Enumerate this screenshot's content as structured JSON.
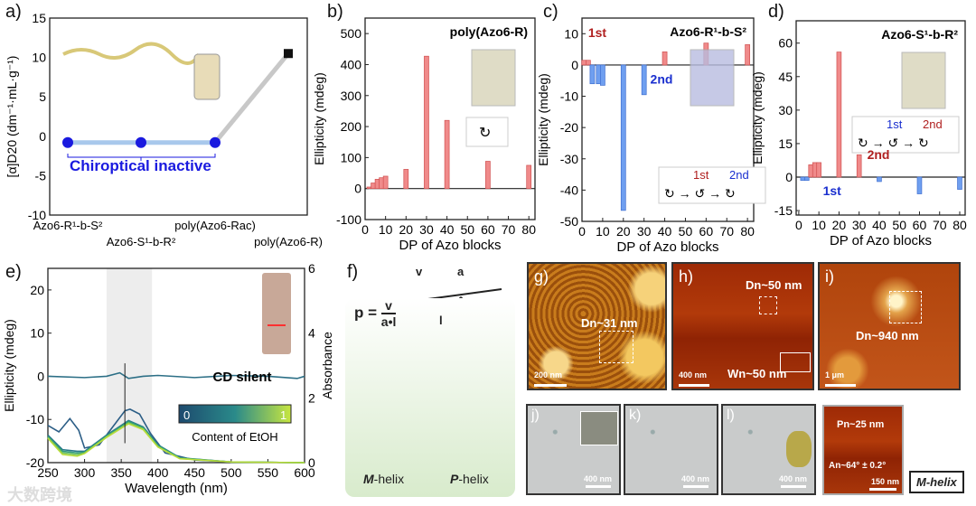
{
  "panel_labels": [
    "a)",
    "b)",
    "c)",
    "d)",
    "e)",
    "f)",
    "g)",
    "h)",
    "i)",
    "j)",
    "k)",
    "l)"
  ],
  "colors": {
    "positive_bar": "#f08a8a",
    "negative_bar": "#6f9ff0",
    "line_point": "#1a1adf",
    "azo_label": "#1a1adf",
    "first": "#b02020",
    "second": "#1a2fcf"
  },
  "chart_data": [
    {
      "id": "a",
      "type": "line",
      "ylabel": "[α]D20 (dm⁻¹·mL·g⁻¹)",
      "ylim": [
        -10,
        15
      ],
      "yticks": [
        -10,
        -5,
        0,
        5,
        10,
        15
      ],
      "categories": [
        "Azo6-R¹-b-S²",
        "Azo6-S¹-b-R²",
        "poly(Azo6-Rac)",
        "poly(Azo6-R)"
      ],
      "values": [
        -0.8,
        -0.8,
        -0.8,
        10.5
      ],
      "annotation": "Chiroptical inactive"
    },
    {
      "id": "b",
      "type": "bar",
      "title": "poly(Azo6-R)",
      "xlabel": "DP of Azo blocks",
      "ylabel": "Ellipticity (mdeg)",
      "xlim": [
        0,
        83
      ],
      "ylim": [
        -100,
        550
      ],
      "xticks": [
        0,
        10,
        20,
        30,
        40,
        50,
        60,
        70,
        80
      ],
      "yticks": [
        -100,
        0,
        100,
        200,
        300,
        400,
        500
      ],
      "x": [
        2,
        4,
        6,
        8,
        10,
        20,
        30,
        40,
        60,
        80
      ],
      "values": [
        5,
        18,
        30,
        35,
        40,
        62,
        427,
        220,
        88,
        75
      ]
    },
    {
      "id": "c",
      "type": "bar",
      "title": "Azo6-R¹-b-S²",
      "xlabel": "DP of Azo blocks",
      "ylabel": "Ellipticity (mdeg)",
      "xlim": [
        0,
        83
      ],
      "ylim": [
        -50,
        15
      ],
      "xticks": [
        0,
        10,
        20,
        30,
        40,
        50,
        60,
        70,
        80
      ],
      "yticks": [
        -50,
        -40,
        -30,
        -20,
        -10,
        0,
        10
      ],
      "x": [
        1,
        3,
        5,
        8,
        10,
        20,
        30,
        40,
        60,
        80
      ],
      "values": [
        1.5,
        1.5,
        -6,
        -6,
        -6.5,
        -46.5,
        -9.5,
        4.2,
        7,
        6.5
      ],
      "annotations": [
        "1st",
        "2nd"
      ],
      "scheme": [
        "1st",
        "2nd"
      ]
    },
    {
      "id": "d",
      "type": "bar",
      "title": "Azo6-S¹-b-R²",
      "xlabel": "DP of Azo blocks",
      "ylabel": "Ellipticity (mdeg)",
      "xlim": [
        -1.3,
        82.7
      ],
      "ylim": [
        -17,
        70
      ],
      "xticks": [
        0,
        10,
        20,
        30,
        40,
        50,
        60,
        70,
        80
      ],
      "yticks": [
        -15,
        0,
        15,
        30,
        45,
        60
      ],
      "x": [
        2,
        4,
        6,
        8,
        10,
        20,
        30,
        40,
        60,
        80
      ],
      "values": [
        -1.5,
        -1.5,
        5.5,
        6.5,
        6.5,
        56,
        10,
        -2,
        -7.5,
        -5.5
      ],
      "annotations": [
        "1st",
        "2nd"
      ],
      "scheme": [
        "1st",
        "2nd"
      ]
    },
    {
      "id": "e",
      "type": "line",
      "xlabel": "Wavelength (nm)",
      "ylabel": "Ellipticity (mdeg)",
      "y2label": "Absorbance",
      "xlim": [
        250,
        600
      ],
      "ylim": [
        -20,
        25
      ],
      "y2lim": [
        0,
        6
      ],
      "xticks": [
        250,
        300,
        350,
        400,
        450,
        500,
        550,
        600
      ],
      "yticks": [
        -20,
        -10,
        0,
        10,
        20
      ],
      "y2ticks": [
        0,
        2,
        4,
        6
      ],
      "highlight_range": [
        330,
        392
      ],
      "annotation": "CD silent",
      "colorbar": {
        "label": "Content of EtOH",
        "min": "0",
        "max": "1"
      },
      "series": [
        {
          "name": "EtOH 0",
          "color": "#2c5e86",
          "axis": "y2",
          "x": [
            250,
            265,
            280,
            292,
            300,
            320,
            340,
            355,
            362,
            375,
            390,
            410,
            450,
            500,
            600
          ],
          "values": [
            1.15,
            0.95,
            1.36,
            1.0,
            0.45,
            0.55,
            1.15,
            1.6,
            1.65,
            1.5,
            0.9,
            0.3,
            0.08,
            0.02,
            0
          ]
        },
        {
          "name": "EtOH 0.25",
          "color": "#2a7a8a",
          "axis": "y2",
          "x": [
            250,
            270,
            290,
            300,
            330,
            360,
            380,
            400,
            430,
            500,
            600
          ],
          "values": [
            0.85,
            0.4,
            0.35,
            0.35,
            0.85,
            1.3,
            1.1,
            0.55,
            0.15,
            0.02,
            0
          ]
        },
        {
          "name": "EtOH 0.5",
          "color": "#2e9a7a",
          "axis": "y2",
          "x": [
            250,
            270,
            290,
            300,
            330,
            360,
            380,
            400,
            430,
            500,
            600
          ],
          "values": [
            0.8,
            0.35,
            0.3,
            0.32,
            0.82,
            1.27,
            1.08,
            0.53,
            0.14,
            0.02,
            0
          ]
        },
        {
          "name": "EtOH 0.75",
          "color": "#6cc05a",
          "axis": "y2",
          "x": [
            250,
            270,
            290,
            300,
            330,
            360,
            380,
            400,
            430,
            500,
            600
          ],
          "values": [
            0.78,
            0.3,
            0.25,
            0.3,
            0.8,
            1.23,
            1.05,
            0.5,
            0.13,
            0.02,
            0
          ]
        },
        {
          "name": "EtOH 1",
          "color": "#b8dc3a",
          "axis": "y2",
          "x": [
            250,
            270,
            290,
            300,
            330,
            360,
            380,
            400,
            430,
            500,
            600
          ],
          "values": [
            0.75,
            0.25,
            0.2,
            0.28,
            0.78,
            1.2,
            1.02,
            0.48,
            0.12,
            0.02,
            0
          ]
        },
        {
          "name": "CD",
          "color": "#2c6f86",
          "axis": "y",
          "x": [
            250,
            300,
            330,
            348,
            360,
            380,
            400,
            450,
            500,
            550,
            590,
            600
          ],
          "values": [
            0,
            -0.3,
            0,
            0.8,
            -0.5,
            0,
            0.2,
            -0.3,
            0.2,
            0,
            -0.5,
            0
          ]
        }
      ]
    }
  ],
  "f": {
    "formula_p": "p =",
    "numerator": "v",
    "denominator": "a•l",
    "v": "v",
    "a": "a",
    "l": "l",
    "left_helix": "M-helix",
    "right_helix": "P-helix"
  },
  "g": {
    "label": "Dn~31 nm",
    "scale": "200 nm"
  },
  "h": {
    "label_d": "Dn~50 nm",
    "label_w": "Wn~50 nm",
    "scale": "400 nm"
  },
  "i": {
    "label": "Dn~940 nm",
    "scale": "1 μm"
  },
  "j": {
    "scale": "400 nm"
  },
  "k": {
    "scale": "400 nm"
  },
  "l": {
    "scale": "400 nm"
  },
  "m": {
    "pitch": "Pn~25 nm",
    "angle": "An~64° ± 0.2°",
    "scale": "150 nm",
    "helix_label": "M-helix"
  },
  "watermark": "大数跨境"
}
